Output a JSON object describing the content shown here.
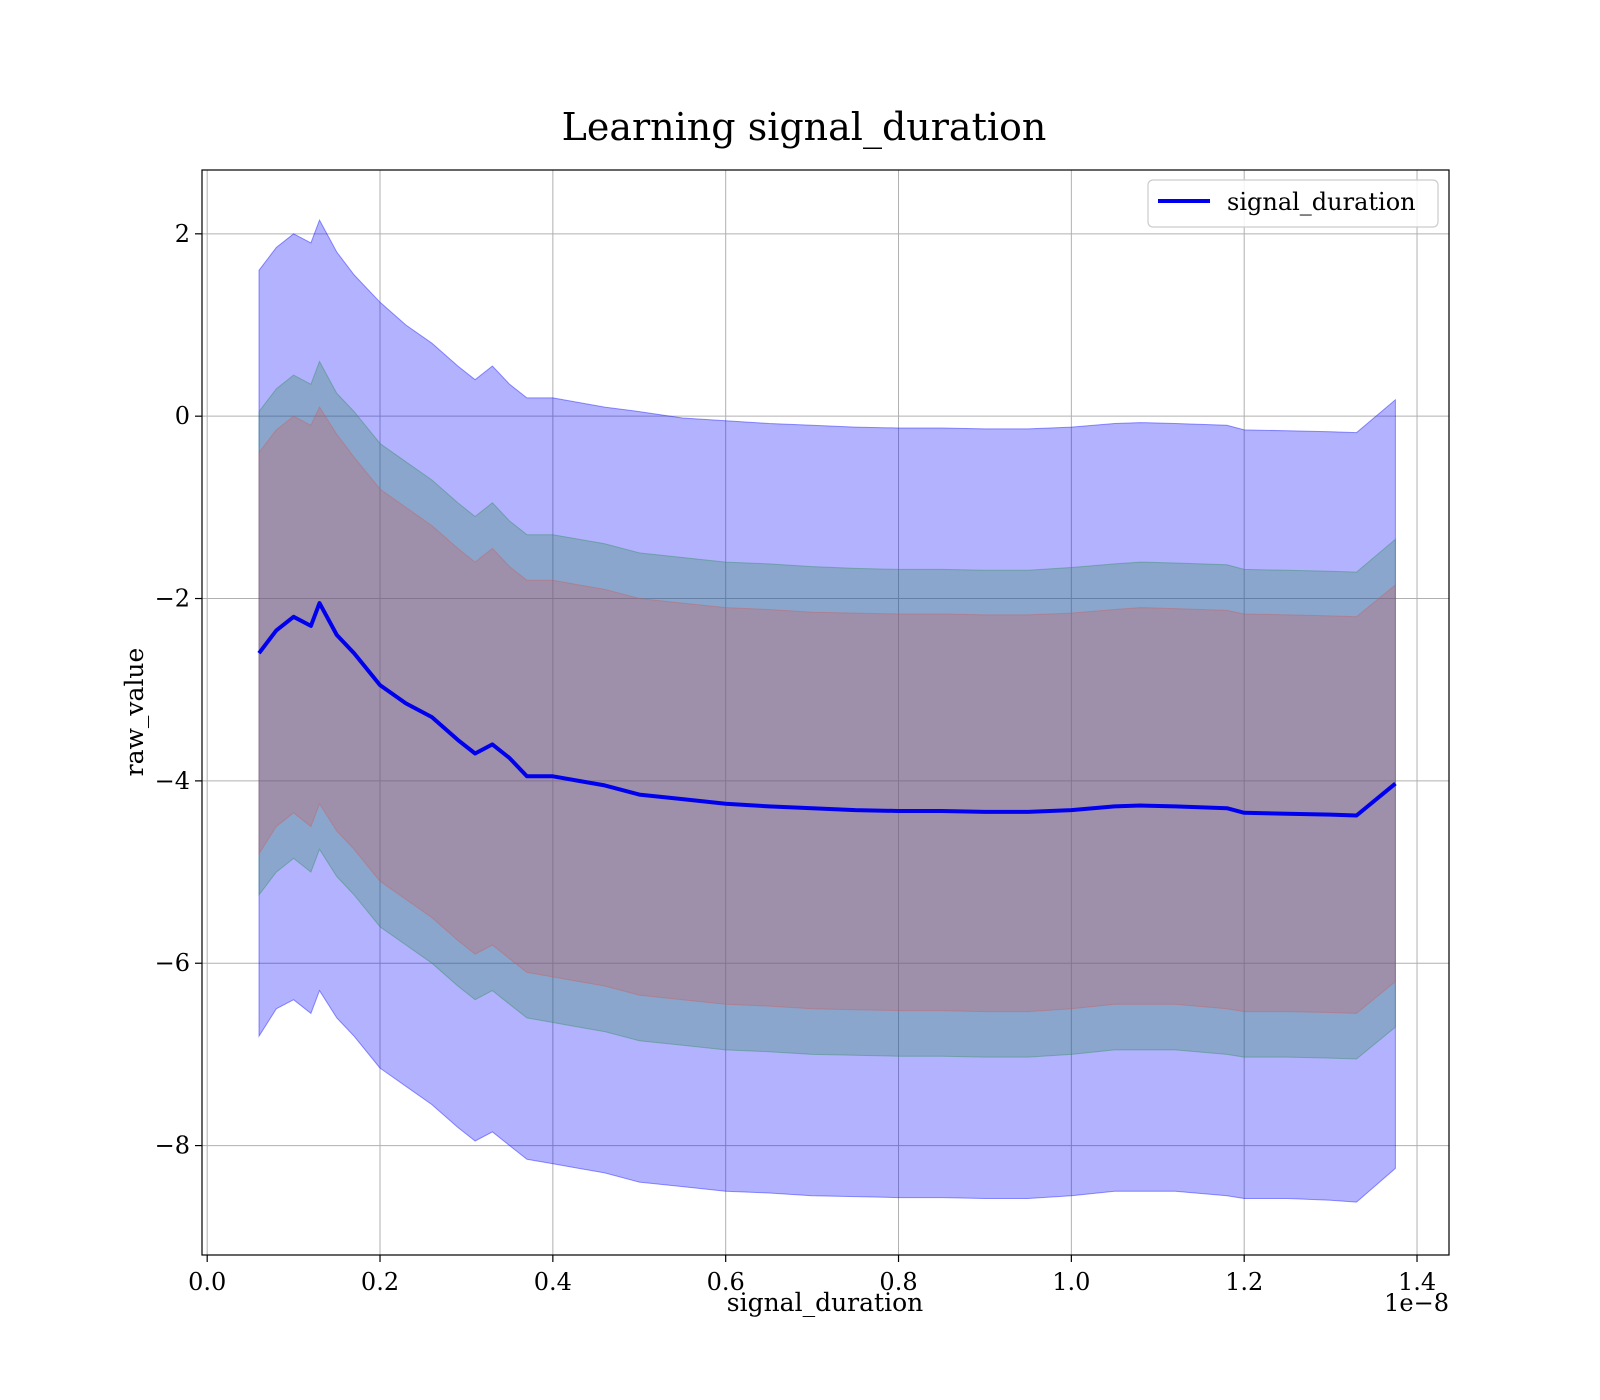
{
  "chart_data": {
    "type": "area",
    "title": "Learning signal_duration",
    "xlabel": "signal_duration",
    "ylabel": "raw_value",
    "x_offset_label": "1e−8",
    "xlim": [
      -0.006,
      1.437
    ],
    "ylim": [
      -9.2,
      2.7
    ],
    "x_ticks": [
      0.0,
      0.2,
      0.4,
      0.6,
      0.8,
      1.0,
      1.2,
      1.4
    ],
    "x_tick_labels": [
      "0.0",
      "0.2",
      "0.4",
      "0.6",
      "0.8",
      "1.0",
      "1.2",
      "1.4"
    ],
    "y_ticks": [
      2,
      0,
      -2,
      -4,
      -6,
      -8
    ],
    "y_tick_labels": [
      "2",
      "0",
      "−2",
      "−4",
      "−6",
      "−8"
    ],
    "grid": true,
    "legend": {
      "position": "upper right",
      "entries": [
        "signal_duration"
      ]
    },
    "colors": {
      "mean_line": "#0000ee",
      "band_outer": "#0000ff",
      "band_middle": "#2e8b57",
      "band_inner": "#cd5c5c"
    },
    "x": [
      0.06,
      0.08,
      0.1,
      0.12,
      0.13,
      0.15,
      0.17,
      0.2,
      0.23,
      0.26,
      0.29,
      0.31,
      0.33,
      0.35,
      0.37,
      0.4,
      0.43,
      0.46,
      0.5,
      0.55,
      0.6,
      0.65,
      0.7,
      0.75,
      0.8,
      0.85,
      0.9,
      0.95,
      1.0,
      1.05,
      1.08,
      1.12,
      1.18,
      1.2,
      1.25,
      1.3,
      1.33,
      1.375
    ],
    "series": [
      {
        "name": "signal_duration",
        "values": [
          -2.6,
          -2.35,
          -2.2,
          -2.3,
          -2.05,
          -2.4,
          -2.6,
          -2.95,
          -3.15,
          -3.3,
          -3.55,
          -3.7,
          -3.6,
          -3.75,
          -3.95,
          -3.95,
          -4.0,
          -4.05,
          -4.15,
          -4.2,
          -4.25,
          -4.28,
          -4.3,
          -4.32,
          -4.33,
          -4.33,
          -4.34,
          -4.34,
          -4.32,
          -4.28,
          -4.27,
          -4.28,
          -4.3,
          -4.35,
          -4.36,
          -4.37,
          -4.38,
          -4.03
        ]
      }
    ],
    "bands": [
      {
        "values_lower": [
          -6.8,
          -6.5,
          -6.4,
          -6.55,
          -6.3,
          -6.6,
          -6.8,
          -7.15,
          -7.35,
          -7.55,
          -7.8,
          -7.95,
          -7.85,
          -8.0,
          -8.15,
          -8.2,
          -8.25,
          -8.3,
          -8.4,
          -8.45,
          -8.5,
          -8.52,
          -8.55,
          -8.56,
          -8.57,
          -8.57,
          -8.58,
          -8.58,
          -8.55,
          -8.5,
          -8.5,
          -8.5,
          -8.55,
          -8.58,
          -8.58,
          -8.6,
          -8.62,
          -8.25
        ],
        "values_upper": [
          1.6,
          1.85,
          2.0,
          1.9,
          2.15,
          1.8,
          1.55,
          1.25,
          1.0,
          0.8,
          0.55,
          0.4,
          0.55,
          0.35,
          0.2,
          0.2,
          0.15,
          0.1,
          0.05,
          -0.02,
          -0.05,
          -0.08,
          -0.1,
          -0.12,
          -0.13,
          -0.13,
          -0.14,
          -0.14,
          -0.12,
          -0.08,
          -0.07,
          -0.08,
          -0.1,
          -0.15,
          -0.16,
          -0.17,
          -0.18,
          0.18
        ]
      },
      {
        "values_lower": [
          -5.25,
          -5.0,
          -4.85,
          -5.0,
          -4.75,
          -5.05,
          -5.25,
          -5.6,
          -5.8,
          -6.0,
          -6.25,
          -6.4,
          -6.3,
          -6.45,
          -6.6,
          -6.65,
          -6.7,
          -6.75,
          -6.85,
          -6.9,
          -6.95,
          -6.97,
          -7.0,
          -7.01,
          -7.02,
          -7.02,
          -7.03,
          -7.03,
          -7.0,
          -6.95,
          -6.95,
          -6.95,
          -7.0,
          -7.03,
          -7.03,
          -7.04,
          -7.05,
          -6.7
        ],
        "values_upper": [
          0.05,
          0.3,
          0.45,
          0.35,
          0.6,
          0.25,
          0.05,
          -0.3,
          -0.5,
          -0.7,
          -0.95,
          -1.1,
          -0.95,
          -1.15,
          -1.3,
          -1.3,
          -1.35,
          -1.4,
          -1.5,
          -1.55,
          -1.6,
          -1.62,
          -1.65,
          -1.67,
          -1.68,
          -1.68,
          -1.69,
          -1.69,
          -1.66,
          -1.62,
          -1.6,
          -1.61,
          -1.63,
          -1.68,
          -1.69,
          -1.7,
          -1.71,
          -1.35
        ]
      },
      {
        "values_lower": [
          -4.8,
          -4.5,
          -4.35,
          -4.5,
          -4.25,
          -4.55,
          -4.75,
          -5.1,
          -5.3,
          -5.5,
          -5.75,
          -5.9,
          -5.8,
          -5.95,
          -6.1,
          -6.15,
          -6.2,
          -6.25,
          -6.35,
          -6.4,
          -6.45,
          -6.47,
          -6.5,
          -6.51,
          -6.52,
          -6.52,
          -6.53,
          -6.53,
          -6.5,
          -6.45,
          -6.45,
          -6.45,
          -6.5,
          -6.53,
          -6.53,
          -6.54,
          -6.55,
          -6.2
        ],
        "values_upper": [
          -0.4,
          -0.15,
          0.0,
          -0.1,
          0.1,
          -0.2,
          -0.45,
          -0.8,
          -1.0,
          -1.2,
          -1.45,
          -1.6,
          -1.45,
          -1.65,
          -1.8,
          -1.8,
          -1.85,
          -1.9,
          -2.0,
          -2.05,
          -2.1,
          -2.12,
          -2.15,
          -2.16,
          -2.17,
          -2.17,
          -2.18,
          -2.18,
          -2.16,
          -2.12,
          -2.1,
          -2.11,
          -2.13,
          -2.17,
          -2.18,
          -2.19,
          -2.2,
          -1.85
        ]
      }
    ]
  }
}
